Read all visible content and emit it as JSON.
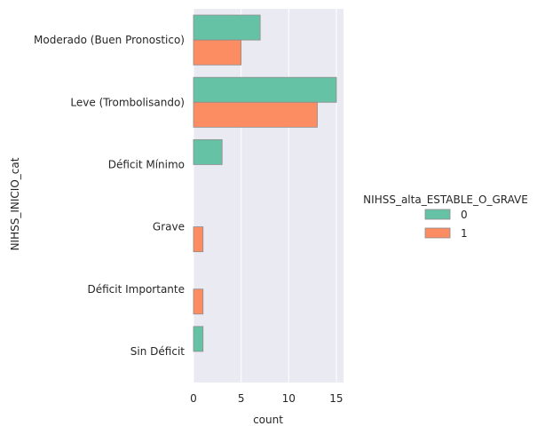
{
  "chart_data": {
    "type": "bar",
    "orientation": "horizontal",
    "categories": [
      "Moderado (Buen Pronostico)",
      "Leve (Trombolisando)",
      "Déficit Mínimo",
      "Grave",
      "Déficit Importante",
      "Sin Déficit"
    ],
    "series": [
      {
        "name": "0",
        "color": "#66c2a5",
        "values": [
          7,
          15,
          3,
          0,
          0,
          1
        ]
      },
      {
        "name": "1",
        "color": "#fc8d62",
        "values": [
          5,
          13,
          0,
          1,
          1,
          0
        ]
      }
    ],
    "xlabel": "count",
    "ylabel": "NIHSS_INICIO_cat",
    "xlim": [
      0,
      15.75
    ],
    "xticks": [
      0,
      5,
      10,
      15
    ],
    "grid": true,
    "legend": {
      "title": "NIHSS_alta_ESTABLE_O_GRAVE",
      "placement": "right"
    }
  }
}
